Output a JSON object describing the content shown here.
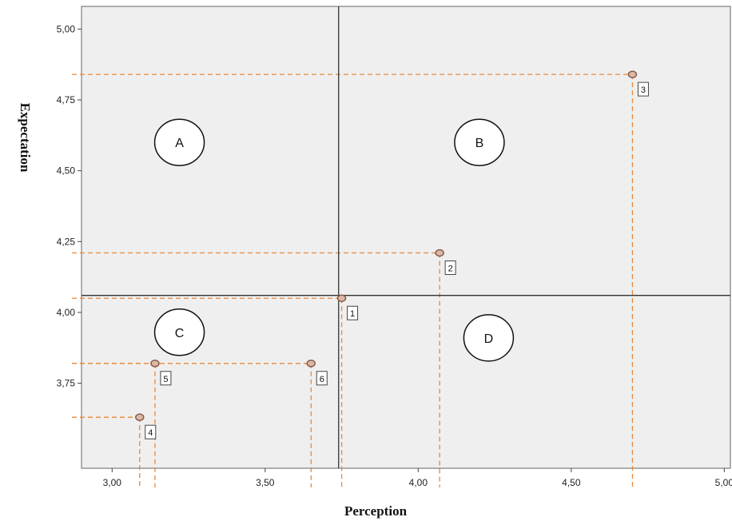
{
  "chart_data": {
    "type": "scatter",
    "xlabel": "Perception",
    "ylabel": "Expectation",
    "xlim": [
      2.9,
      5.02
    ],
    "ylim": [
      3.45,
      5.08
    ],
    "x_ticks": [
      3.0,
      3.5,
      4.0,
      4.5,
      5.0
    ],
    "x_tick_labels": [
      "3,00",
      "3,50",
      "4,00",
      "4,50",
      "5,00"
    ],
    "y_ticks": [
      3.75,
      4.0,
      4.25,
      4.5,
      4.75,
      5.0
    ],
    "y_tick_labels": [
      "3,75",
      "4,00",
      "4,25",
      "4,50",
      "4,75",
      "5,00"
    ],
    "reference_lines": {
      "x": 3.74,
      "y": 4.06
    },
    "points": [
      {
        "label": "1",
        "x": 3.75,
        "y": 4.05
      },
      {
        "label": "2",
        "x": 4.07,
        "y": 4.21
      },
      {
        "label": "3",
        "x": 4.7,
        "y": 4.84
      },
      {
        "label": "4",
        "x": 3.09,
        "y": 3.63
      },
      {
        "label": "5",
        "x": 3.14,
        "y": 3.82
      },
      {
        "label": "6",
        "x": 3.65,
        "y": 3.82
      }
    ],
    "quadrants": [
      {
        "label": "A",
        "x": 3.22,
        "y": 4.6
      },
      {
        "label": "B",
        "x": 4.2,
        "y": 4.6
      },
      {
        "label": "C",
        "x": 3.22,
        "y": 3.93
      },
      {
        "label": "D",
        "x": 4.23,
        "y": 3.91
      }
    ],
    "grid": false,
    "colors": {
      "plot_bg": "#efefef",
      "guide": "#e8883a",
      "marker_fill": "#d9b9a8",
      "marker_stroke": "#8a5a4a",
      "ref_line": "#333333"
    }
  }
}
